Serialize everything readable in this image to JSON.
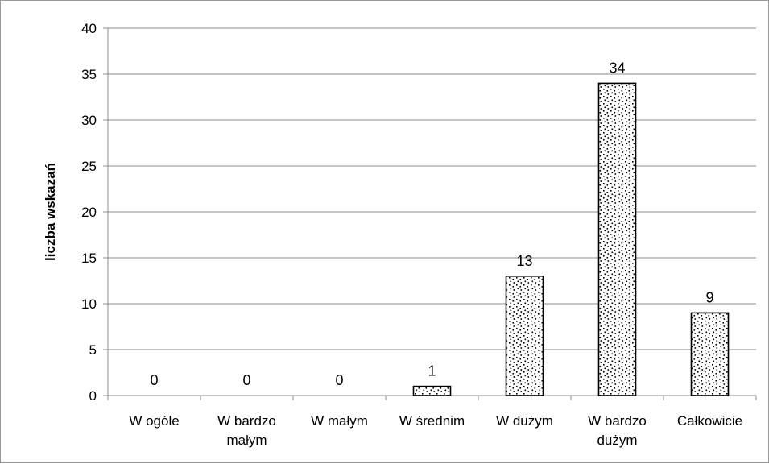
{
  "chart_data": {
    "type": "bar",
    "title": "",
    "xlabel": "",
    "ylabel": "liczba wskazań",
    "ylim": [
      0,
      40
    ],
    "ytick_step": 5,
    "yticks": [
      "0",
      "5",
      "10",
      "15",
      "20",
      "25",
      "30",
      "35",
      "40"
    ],
    "grid": true,
    "legend": "none",
    "categories": [
      [
        "W ogóle"
      ],
      [
        "W bardzo",
        "małym"
      ],
      [
        "W małym"
      ],
      [
        "W średnim"
      ],
      [
        "W dużym"
      ],
      [
        "W bardzo",
        "dużym"
      ],
      [
        "Całkowicie"
      ]
    ],
    "values": [
      0,
      0,
      0,
      1,
      13,
      34,
      9
    ],
    "data_labels": [
      "0",
      "0",
      "0",
      "1",
      "13",
      "34",
      "9"
    ],
    "colors": {
      "bar_fill": "#ffffff",
      "bar_pattern": "#000000",
      "bar_stroke": "#000000",
      "grid": "#8c8c8c",
      "axis": "#8c8c8c"
    }
  }
}
